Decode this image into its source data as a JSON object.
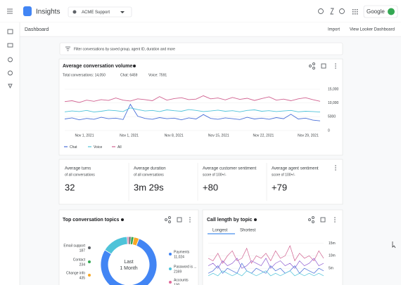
{
  "header": {
    "app_name": "Insights",
    "project": "ACME Support",
    "account": "Google"
  },
  "toolbar": {
    "title": "Dashboard",
    "actions": [
      "Import",
      "View Looker Dashboard"
    ]
  },
  "filter": {
    "placeholder": "Filter conversations by saved group, agent ID, duration and more"
  },
  "volume_card": {
    "title": "Average conversation volume",
    "stats": [
      "Total conversations: 14,050",
      "Chat: 6459",
      "Voice: 7591"
    ],
    "chart": {
      "type": "line",
      "x_labels": [
        "Nov 1, 2021",
        "Nov 1, 2021",
        "Nov 8, 2021",
        "Nov 15, 2021",
        "Nov 22, 2021",
        "Nov 29, 2021"
      ],
      "ylim": [
        0,
        15000
      ],
      "yticks": [
        0,
        5000,
        {
          "value": 10000,
          "label": "10,000"
        },
        {
          "value": 15000,
          "label": "15,000"
        }
      ],
      "series": [
        {
          "name": "Chat",
          "color": "#4a6fd8",
          "values": [
            4200,
            4600,
            3900,
            4400,
            4100,
            4800,
            4300,
            4500,
            4000,
            9500,
            5200,
            4400,
            4100,
            4700,
            4300,
            4500,
            3900,
            4600,
            4200,
            5800,
            4400,
            4100,
            4600,
            4300,
            4000,
            4800,
            4200,
            4500,
            4100,
            4700,
            4300,
            5900,
            4200,
            4500,
            3800,
            3500
          ]
        },
        {
          "name": "Voice",
          "color": "#4fc3d9",
          "values": [
            6800,
            7100,
            6900,
            7300,
            6700,
            7000,
            7400,
            7200,
            6900,
            8200,
            7600,
            7100,
            7300,
            6900,
            7500,
            7200,
            7000,
            7600,
            7300,
            6900,
            7100,
            7400,
            7000,
            7200,
            6800,
            7300,
            7500,
            7000,
            7200,
            6900,
            7100,
            7300,
            6800,
            7000,
            6900,
            6700
          ]
        },
        {
          "name": "All",
          "color": "#d0608f",
          "values": [
            10500,
            10800,
            10200,
            11000,
            10600,
            11200,
            10900,
            11800,
            11000,
            10700,
            11500,
            11200,
            10800,
            12300,
            11000,
            11600,
            11900,
            11200,
            11400,
            12600,
            11500,
            11800,
            11100,
            12000,
            11300,
            11700,
            10900,
            11600,
            12200,
            11000,
            11400,
            10800,
            11500,
            11900,
            11200,
            10600
          ]
        }
      ]
    }
  },
  "metrics": [
    {
      "label": "Average turns",
      "sub": "of all conversations",
      "value": 32
    },
    {
      "label": "Average duration",
      "sub": "of all conversations",
      "value": "3m 29s"
    },
    {
      "label": "Average customer sentiment",
      "sub": "score of 100+/-",
      "value": "+80"
    },
    {
      "label": "Average agent sentiment",
      "sub": "score of 100+/-",
      "value": "+79"
    }
  ],
  "topics_card": {
    "title": "Top conversation topics",
    "center": [
      "Last",
      "1 Month"
    ],
    "chart": {
      "type": "pie",
      "categories": [
        "Email support",
        "Contact",
        "Change info",
        "Payments",
        "Password is ...",
        "Accounts"
      ],
      "values": [
        187,
        234,
        435,
        11024,
        2169,
        130
      ],
      "value_labels": [
        "187",
        "234",
        "435",
        "11,024",
        "2169",
        "130"
      ],
      "colors": [
        "#5f6368",
        "#34a853",
        "#f9a825",
        "#4285f4",
        "#4fc3d9",
        "#e06a9a"
      ]
    }
  },
  "call_card": {
    "title": "Call length by topic",
    "tabs": [
      "Longest",
      "Shortest"
    ],
    "chart": {
      "type": "line",
      "ylim": [
        0,
        16
      ],
      "yticks": [
        {
          "value": 5,
          "label": "5m"
        },
        {
          "value": 10,
          "label": "10m"
        },
        {
          "value": 15,
          "label": "15m"
        }
      ],
      "series": [
        {
          "color": "#d0608f",
          "values": [
            9,
            8,
            11,
            7,
            10,
            12,
            8,
            9,
            13,
            7,
            10,
            9,
            11,
            8,
            12,
            9,
            10,
            14,
            8,
            11,
            9,
            10,
            8,
            12,
            9
          ]
        },
        {
          "color": "#8e5bd0",
          "values": [
            6,
            7,
            5,
            8,
            6,
            7,
            9,
            5,
            6,
            8,
            7,
            6,
            9,
            5,
            7,
            8,
            6,
            7,
            5,
            8,
            6,
            7,
            9,
            6,
            7
          ]
        },
        {
          "color": "#4a6fd8",
          "values": [
            3,
            4,
            6,
            3,
            5,
            4,
            3,
            7,
            4,
            3,
            5,
            4,
            3,
            6,
            4,
            5,
            3,
            4,
            6,
            3,
            5,
            4,
            3,
            5,
            4
          ]
        },
        {
          "color": "#4fc3d9",
          "values": [
            2,
            3,
            2,
            4,
            3,
            2,
            3,
            2,
            4,
            3,
            2,
            3,
            4,
            2,
            3,
            2,
            3,
            4,
            2,
            3,
            2,
            3,
            2,
            3,
            2
          ]
        }
      ]
    }
  }
}
